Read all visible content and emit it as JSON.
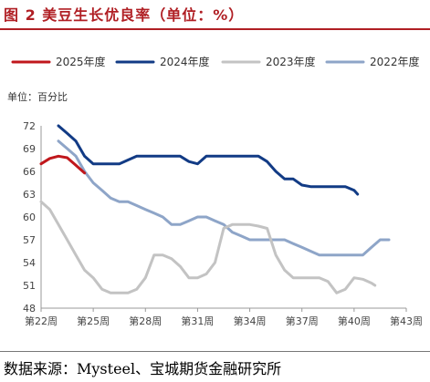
{
  "header": {
    "title": "图 2 美豆生长优良率（单位：%）"
  },
  "footer": {
    "source": "数据来源：Mysteel、宝城期货金融研究所"
  },
  "chart_data": {
    "type": "line",
    "unit_label": "单位：百分比",
    "legend_position": "top",
    "grid": false,
    "x_categories": [
      "第22周",
      "第25周",
      "第28周",
      "第31周",
      "第34周",
      "第37周",
      "第40周",
      "第43周"
    ],
    "x_range": [
      22,
      43
    ],
    "ylim": [
      48,
      72
    ],
    "yticks": [
      48,
      51,
      54,
      57,
      60,
      63,
      66,
      69,
      72
    ],
    "series": [
      {
        "name": "2025年度",
        "color": "#c0171c",
        "x": [
          22,
          22.5,
          23,
          23.5,
          24,
          24.5
        ],
        "values": [
          67,
          67.7,
          68,
          67.8,
          66.8,
          65.8
        ]
      },
      {
        "name": "2024年度",
        "color": "#123b85",
        "x": [
          23,
          23.5,
          24,
          24.5,
          25,
          25.5,
          26,
          26.5,
          27,
          27.5,
          28,
          28.5,
          29,
          29.5,
          30,
          30.5,
          31,
          31.5,
          32,
          32.5,
          33,
          33.5,
          34,
          34.5,
          35,
          35.5,
          36,
          36.5,
          37,
          37.5,
          38,
          38.5,
          39,
          39.5,
          40,
          40.2
        ],
        "values": [
          72,
          71,
          70,
          68,
          67,
          67,
          67,
          67,
          67.5,
          68,
          68,
          68,
          68,
          68,
          68,
          67.3,
          67,
          68,
          68,
          68,
          68,
          68,
          68,
          68,
          67.3,
          66,
          65,
          65,
          64.2,
          64,
          64,
          64,
          64,
          64,
          63.5,
          63
        ]
      },
      {
        "name": "2023年度",
        "color": "#c3c3c3",
        "x": [
          22,
          22.5,
          23,
          23.5,
          24,
          24.5,
          25,
          25.5,
          26,
          26.5,
          27,
          27.5,
          28,
          28.5,
          29,
          29.5,
          30,
          30.5,
          31,
          31.5,
          32,
          32.5,
          33,
          33.5,
          34,
          34.5,
          35,
          35.5,
          36,
          36.5,
          37,
          37.5,
          38,
          38.5,
          39,
          39.5,
          40,
          40.5,
          41,
          41.2
        ],
        "values": [
          62,
          61,
          59,
          57,
          55,
          53,
          52,
          50.5,
          50,
          50,
          50,
          50.5,
          52,
          55,
          55,
          54.5,
          53.5,
          52,
          52,
          52.5,
          54,
          58.5,
          59,
          59,
          59,
          58.8,
          58.5,
          55,
          53,
          52,
          52,
          52,
          52,
          51.5,
          50,
          50.5,
          52,
          51.8,
          51.3,
          51
        ]
      },
      {
        "name": "2022年度",
        "color": "#8ea5c8",
        "x": [
          23,
          23.5,
          24,
          24.5,
          25,
          25.5,
          26,
          26.5,
          27,
          27.5,
          28,
          28.5,
          29,
          29.5,
          30,
          30.5,
          31,
          31.5,
          32,
          32.5,
          33,
          33.5,
          34,
          34.5,
          35,
          35.5,
          36,
          36.5,
          37,
          37.5,
          38,
          38.5,
          39,
          39.5,
          40,
          40.5,
          41,
          41.5,
          42
        ],
        "values": [
          70,
          69,
          68,
          66,
          64.5,
          63.5,
          62.5,
          62,
          62,
          61.5,
          61,
          60.5,
          60,
          59,
          59,
          59.5,
          60,
          60,
          59.5,
          59,
          58,
          57.5,
          57,
          57,
          57,
          57,
          57,
          56.5,
          56,
          55.5,
          55,
          55,
          55,
          55,
          55,
          55,
          56,
          57,
          57
        ]
      }
    ]
  }
}
